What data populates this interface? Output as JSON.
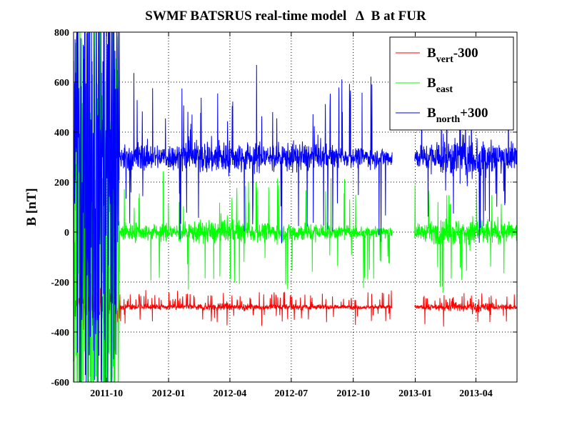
{
  "chart_data": {
    "type": "line",
    "title_prefix": "SWMF BATSRUS real-time model",
    "title_symbol": "Δ",
    "title_suffix": "B at FUR",
    "ylabel": "B [nT]",
    "xlabel": "",
    "ylim": [
      -600,
      800
    ],
    "xlim": [
      "2011-08-13",
      "2013-06-01"
    ],
    "yticks": [
      -600,
      -400,
      -200,
      0,
      200,
      400,
      600,
      800
    ],
    "xticks": [
      "2011-10",
      "2012-01",
      "2012-04",
      "2012-07",
      "2012-10",
      "2013-01",
      "2013-04"
    ],
    "grid": true,
    "legend_placement": "top-right",
    "data_gaps": [
      [
        "2012-11-28",
        "2012-12-31"
      ]
    ],
    "series": [
      {
        "name": "B_vert-300",
        "legend_main": "B",
        "legend_sub": "vert",
        "legend_suffix": "-300",
        "color": "#ff0000",
        "offset": -300,
        "approx_noise_amplitude": 25,
        "approx_range": [
          -450,
          -250
        ]
      },
      {
        "name": "B_east",
        "legend_main": "B",
        "legend_sub": "east",
        "legend_suffix": "",
        "color": "#00ff00",
        "offset": 0,
        "approx_noise_amplitude": 80,
        "approx_range": [
          -600,
          800
        ]
      },
      {
        "name": "B_north+300",
        "legend_main": "B",
        "legend_sub": "north",
        "legend_suffix": "+300",
        "color": "#0000ff",
        "offset": 300,
        "approx_noise_amplitude": 120,
        "approx_range": [
          -600,
          800
        ]
      }
    ]
  }
}
